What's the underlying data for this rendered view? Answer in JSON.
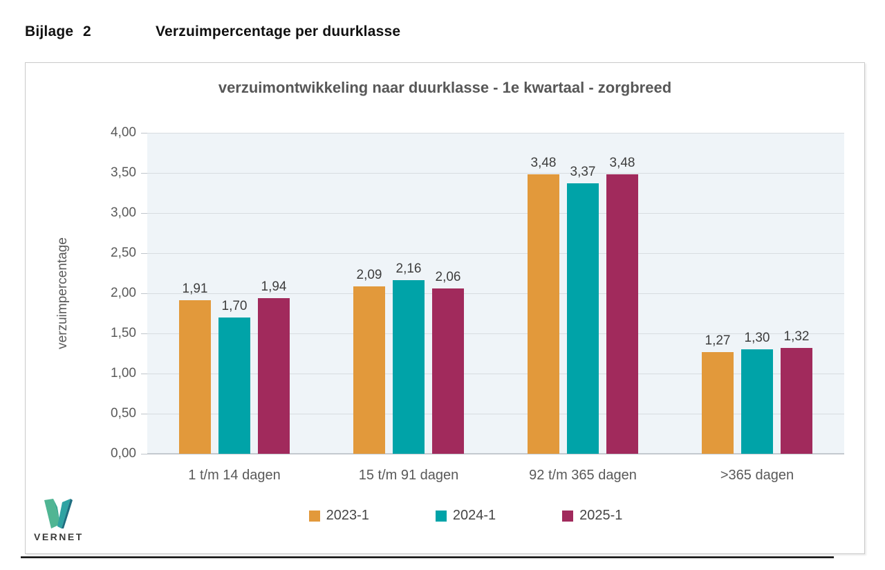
{
  "header": {
    "label": "Bijlage",
    "number": "2",
    "title": "Verzuimpercentage per duurklasse"
  },
  "chart_data": {
    "type": "bar",
    "title": "verzuimontwikkeling naar duurklasse - 1e kwartaal - zorgbreed",
    "xlabel": "",
    "ylabel": "verzuimpercentage",
    "categories": [
      "1 t/m 14 dagen",
      "15 t/m 91 dagen",
      "92 t/m 365 dagen",
      ">365 dagen"
    ],
    "series": [
      {
        "name": "2023-1",
        "color": "#E2993B",
        "values": [
          1.91,
          2.09,
          3.48,
          1.27
        ]
      },
      {
        "name": "2024-1",
        "color": "#00A3A8",
        "values": [
          1.7,
          2.16,
          3.37,
          1.3
        ]
      },
      {
        "name": "2025-1",
        "color": "#A12A5C",
        "values": [
          1.94,
          2.06,
          3.48,
          1.32
        ]
      }
    ],
    "value_labels": [
      [
        "1,91",
        "1,70",
        "1,94"
      ],
      [
        "2,09",
        "2,16",
        "2,06"
      ],
      [
        "3,48",
        "3,37",
        "3,48"
      ],
      [
        "1,27",
        "1,30",
        "1,32"
      ]
    ],
    "ylim": [
      0,
      4
    ],
    "ytick_step": 0.5,
    "ytick_labels": [
      "0,00",
      "0,50",
      "1,00",
      "1,50",
      "2,00",
      "2,50",
      "3,00",
      "3,50",
      "4,00"
    ],
    "grid": true,
    "legend_position": "bottom",
    "plot_bg": "#EFF4F8"
  },
  "logo": {
    "text": "VERNET",
    "mark_colors": {
      "left_arm": "#50B593",
      "right_arm_dark": "#1E6E80",
      "right_arm_fold": "#2FA3A3"
    }
  },
  "colors": {
    "chart_border": "#C9C9C9",
    "gridline": "#D7DCE0",
    "axis_text": "#595959",
    "value_label_text": "#3D3D3D",
    "title_text": "#575757",
    "bottom_rule": "#1C1C1C"
  }
}
